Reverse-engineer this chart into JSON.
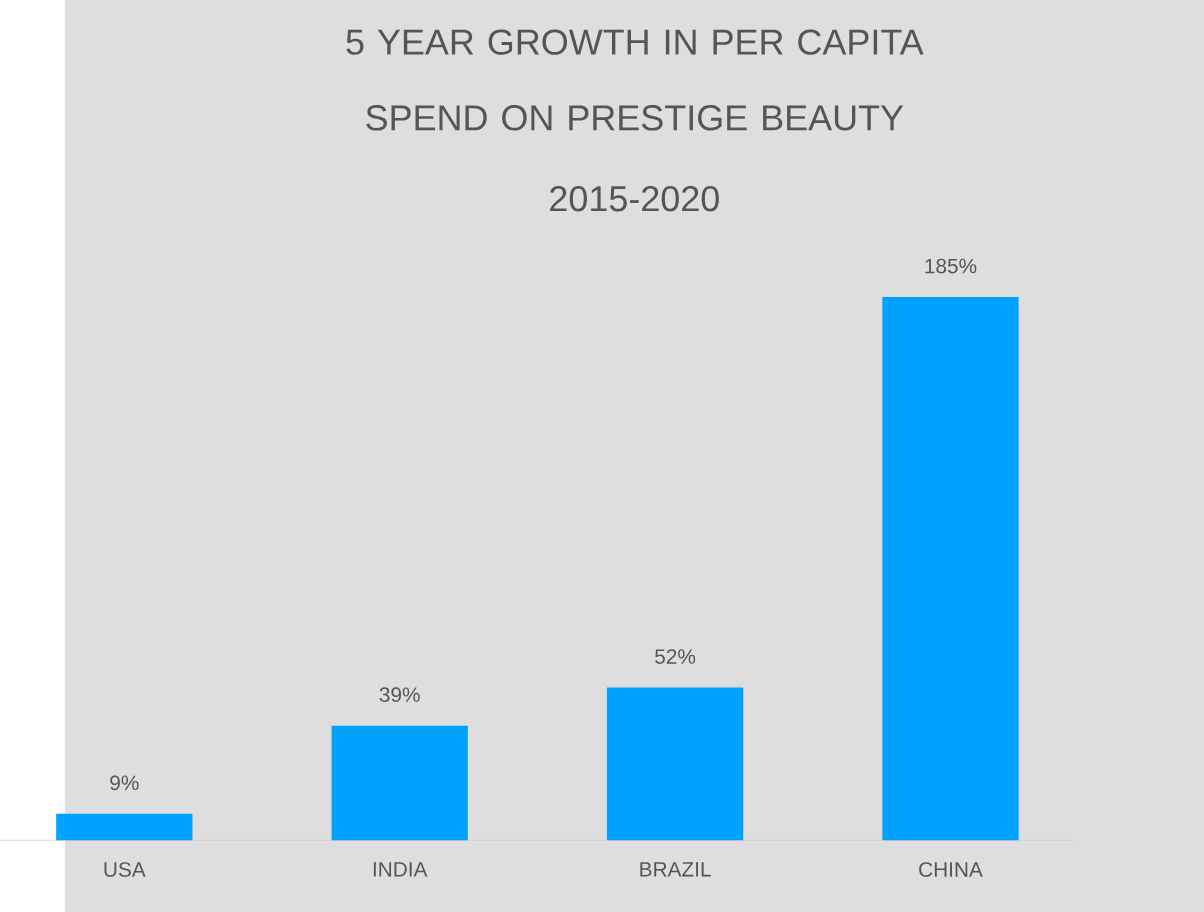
{
  "chart_data": {
    "type": "bar",
    "title": "5 YEAR GROWTH IN PER CAPITA SPEND ON PRESTIGE BEAUTY",
    "subtitle": "2015-2020",
    "categories": [
      "USA",
      "INDIA",
      "BRAZIL",
      "CHINA"
    ],
    "values": [
      9,
      39,
      52,
      185
    ],
    "value_labels": [
      "9%",
      "39%",
      "52%",
      "185%"
    ],
    "color": "#00a2ff"
  }
}
